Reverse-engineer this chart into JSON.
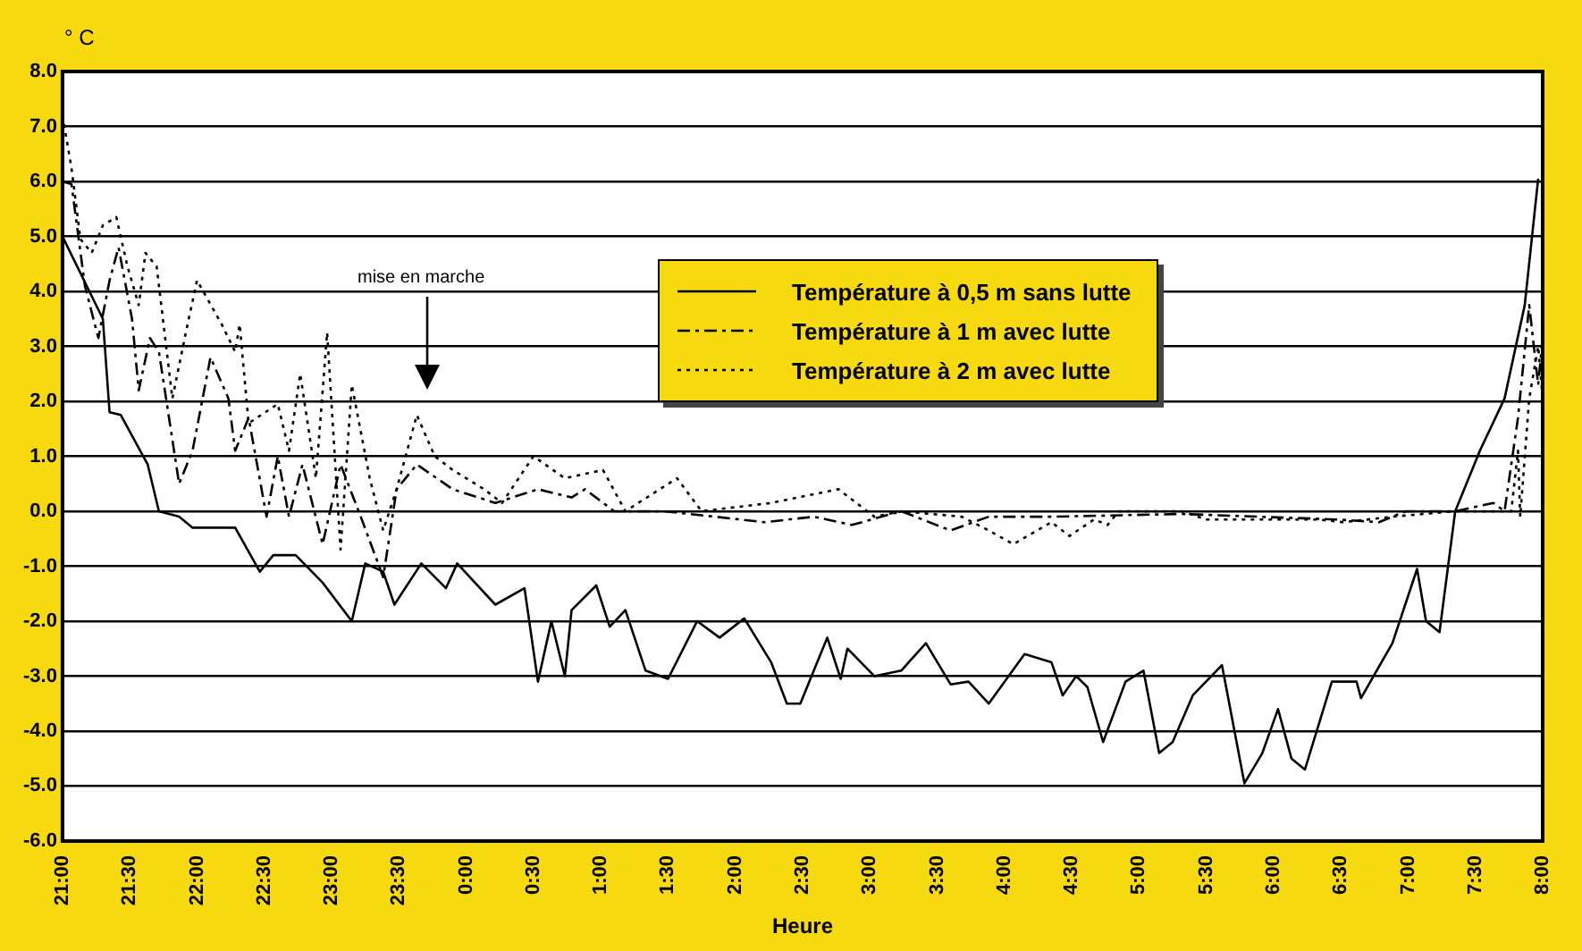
{
  "chart_data": {
    "type": "line",
    "ylabel": "° C",
    "xlabel": "Heure",
    "xlim": [
      "--01-01T21:00",
      "--01-02T08:00"
    ],
    "xticks": [
      {
        "value": "--01-01T21:00",
        "label": "21:00"
      },
      {
        "value": "--01-01T21:30",
        "label": "21:30"
      },
      {
        "value": "--01-01T22:00",
        "label": "22:00"
      },
      {
        "value": "--01-01T22:30",
        "label": "22:30"
      },
      {
        "value": "--01-01T23:00",
        "label": "23:00"
      },
      {
        "value": "--01-01T23:30",
        "label": "23:30"
      },
      {
        "value": "--01-02T00:00",
        "label": "0:00"
      },
      {
        "value": "--01-02T00:30",
        "label": "0:30"
      },
      {
        "value": "--01-02T01:00",
        "label": "1:00"
      },
      {
        "value": "--01-02T01:30",
        "label": "1:30"
      },
      {
        "value": "--01-02T02:00",
        "label": "2:00"
      },
      {
        "value": "--01-02T02:30",
        "label": "2:30"
      },
      {
        "value": "--01-02T03:00",
        "label": "3:00"
      },
      {
        "value": "--01-02T03:30",
        "label": "3:30"
      },
      {
        "value": "--01-02T04:00",
        "label": "4:00"
      },
      {
        "value": "--01-02T04:30",
        "label": "4:30"
      },
      {
        "value": "--01-02T05:00",
        "label": "5:00"
      },
      {
        "value": "--01-02T05:30",
        "label": "5:30"
      },
      {
        "value": "--01-02T06:00",
        "label": "6:00"
      },
      {
        "value": "--01-02T06:30",
        "label": "6:30"
      },
      {
        "value": "--01-02T07:00",
        "label": "7:00"
      },
      {
        "value": "--01-02T07:30",
        "label": "7:30"
      },
      {
        "value": "--01-02T08:00",
        "label": "8:00"
      }
    ],
    "ylim": [
      -6,
      8
    ],
    "yticks": [
      {
        "value": -6,
        "label": "-6.0"
      },
      {
        "value": -5,
        "label": "-5.0"
      },
      {
        "value": -4,
        "label": "-4.0"
      },
      {
        "value": -3,
        "label": "-3.0"
      },
      {
        "value": -2,
        "label": "-2.0"
      },
      {
        "value": -1,
        "label": "-1.0"
      },
      {
        "value": 0,
        "label": "0.0"
      },
      {
        "value": 1,
        "label": "1.0"
      },
      {
        "value": 2,
        "label": "2.0"
      },
      {
        "value": 3,
        "label": "3.0"
      },
      {
        "value": 4,
        "label": "4.0"
      },
      {
        "value": 5,
        "label": "5.0"
      },
      {
        "value": 6,
        "label": "6.0"
      },
      {
        "value": 7,
        "label": "7.0"
      },
      {
        "value": 8,
        "label": "8.0"
      }
    ],
    "grid": "y",
    "legend": "top",
    "marker": "none",
    "annotations": [
      "mise en marche"
    ],
    "series": [
      {
        "name": "Température à 0,5 m sans lutte",
        "color": "#000000",
        "line_style": "solid",
        "x": [
          "--01-01T21:00",
          "--01-01T21:18",
          "--01-01T21:21",
          "--01-01T21:26",
          "--01-01T21:38",
          "--01-01T21:43",
          "--01-01T21:52",
          "--01-01T21:58",
          "--01-01T22:17",
          "--01-01T22:28",
          "--01-01T22:34",
          "--01-01T22:44",
          "--01-01T22:56",
          "--01-01T23:09",
          "--01-01T23:15",
          "--01-01T23:23",
          "--01-01T23:28",
          "--01-01T23:40",
          "--01-01T23:51",
          "--01-01T23:56",
          "--01-02T00:13",
          "--01-02T00:26",
          "--01-02T00:32",
          "--01-02T00:38",
          "--01-02T00:44",
          "--01-02T00:47",
          "--01-02T00:58",
          "--01-02T01:04",
          "--01-02T01:11",
          "--01-02T01:20",
          "--01-02T01:30",
          "--01-02T01:43",
          "--01-02T01:53",
          "--01-02T02:04",
          "--01-02T02:16",
          "--01-02T02:23",
          "--01-02T02:29",
          "--01-02T02:41",
          "--01-02T02:47",
          "--01-02T02:50",
          "--01-02T03:02",
          "--01-02T03:14",
          "--01-02T03:25",
          "--01-02T03:36",
          "--01-02T03:44",
          "--01-02T03:53",
          "--01-02T04:09",
          "--01-02T04:21",
          "--01-02T04:26",
          "--01-02T04:32",
          "--01-02T04:37",
          "--01-02T04:44",
          "--01-02T04:54",
          "--01-02T05:02",
          "--01-02T05:09",
          "--01-02T05:15",
          "--01-02T05:24",
          "--01-02T05:37",
          "--01-02T05:47",
          "--01-02T05:55",
          "--01-02T06:02",
          "--01-02T06:08",
          "--01-02T06:14",
          "--01-02T06:26",
          "--01-02T06:37",
          "--01-02T06:39",
          "--01-02T06:53",
          "--01-02T07:04",
          "--01-02T07:08",
          "--01-02T07:14",
          "--01-02T07:21",
          "--01-02T07:32",
          "--01-02T07:43",
          "--01-02T07:52",
          "--01-02T07:58"
        ],
        "values": [
          5.0,
          3.5,
          1.8,
          1.75,
          0.85,
          0,
          -0.1,
          -0.3,
          -0.3,
          -1.1,
          -0.8,
          -0.8,
          -1.3,
          -2.0,
          -0.95,
          -1.1,
          -1.7,
          -0.95,
          -1.4,
          -0.95,
          -1.7,
          -1.4,
          -3.1,
          -2.0,
          -3.0,
          -1.8,
          -1.35,
          -2.1,
          -1.8,
          -2.9,
          -3.05,
          -2.0,
          -2.3,
          -1.95,
          -2.75,
          -3.5,
          -3.5,
          -2.3,
          -3.05,
          -2.5,
          -3.0,
          -2.9,
          -2.4,
          -3.15,
          -3.1,
          -3.5,
          -2.6,
          -2.75,
          -3.35,
          -3.0,
          -3.2,
          -4.2,
          -3.1,
          -2.9,
          -4.4,
          -4.2,
          -3.35,
          -2.8,
          -4.95,
          -4.4,
          -3.6,
          -4.5,
          -4.7,
          -3.1,
          -3.1,
          -3.4,
          -2.4,
          -1.05,
          -2.0,
          -2.2,
          0,
          1.1,
          2.05,
          3.75,
          6.05
        ]
      },
      {
        "name": "Température à 1 m avec lutte",
        "color": "#000000",
        "line_style": "dashed",
        "x": [
          "--01-01T21:00",
          "--01-01T21:04",
          "--01-01T21:10",
          "--01-01T21:16",
          "--01-01T21:21",
          "--01-01T21:25",
          "--01-01T21:31",
          "--01-01T21:34",
          "--01-01T21:39",
          "--01-01T21:43",
          "--01-01T21:52",
          "--01-01T21:58",
          "--01-01T22:06",
          "--01-01T22:14",
          "--01-01T22:17",
          "--01-01T22:23",
          "--01-01T22:31",
          "--01-01T22:36",
          "--01-01T22:41",
          "--01-01T22:47",
          "--01-01T22:56",
          "--01-01T23:04",
          "--01-01T23:13",
          "--01-01T23:23",
          "--01-01T23:29",
          "--01-01T23:38",
          "--01-01T23:54",
          "--01-02T00:13",
          "--01-02T00:32",
          "--01-02T00:47",
          "--01-02T00:53",
          "--01-02T01:06",
          "--01-02T01:28",
          "--01-02T01:51",
          "--01-02T02:13",
          "--01-02T02:35",
          "--01-02T02:52",
          "--01-02T03:14",
          "--01-02T03:36",
          "--01-02T03:53",
          "--01-02T04:21",
          "--01-02T05:19",
          "--01-02T06:28",
          "--01-02T06:47",
          "--01-02T06:59",
          "--01-02T07:21",
          "--01-02T07:38",
          "--01-02T07:43",
          "--01-02T07:49",
          "--01-02T07:54",
          "--01-02T07:58",
          "--01-02T08:00"
        ],
        "values": [
          6.0,
          5.95,
          4.1,
          3.15,
          4.2,
          4.8,
          3.5,
          2.2,
          3.15,
          2.9,
          0.5,
          1.1,
          2.8,
          2.05,
          1.1,
          1.7,
          -0.1,
          1.0,
          -0.1,
          0.85,
          -0.6,
          0.85,
          -0.1,
          -1.2,
          0.4,
          0.85,
          0.4,
          0.15,
          0.4,
          0.25,
          0.4,
          0,
          0,
          -0.1,
          -0.2,
          -0.1,
          -0.25,
          0,
          -0.35,
          -0.1,
          -0.1,
          -0.05,
          -0.15,
          -0.2,
          0,
          0,
          0.15,
          0,
          1.7,
          3.75,
          2.3,
          3.15
        ]
      },
      {
        "name": "Température à 2 m avec lutte",
        "color": "#000000",
        "line_style": "dotted",
        "x": [
          "--01-01T21:00",
          "--01-01T21:04",
          "--01-01T21:08",
          "--01-01T21:13",
          "--01-01T21:18",
          "--01-01T21:24",
          "--01-01T21:29",
          "--01-01T21:34",
          "--01-01T21:37",
          "--01-01T21:42",
          "--01-01T21:49",
          "--01-01T21:55",
          "--01-01T22:00",
          "--01-01T22:11",
          "--01-01T22:17",
          "--01-01T22:19",
          "--01-01T22:23",
          "--01-01T22:36",
          "--01-01T22:41",
          "--01-01T22:46",
          "--01-01T22:53",
          "--01-01T22:58",
          "--01-01T23:04",
          "--01-01T23:09",
          "--01-01T23:17",
          "--01-01T23:23",
          "--01-01T23:29",
          "--01-01T23:38",
          "--01-01T23:46",
          "--01-01T23:54",
          "--01-02T00:08",
          "--01-02T00:16",
          "--01-02T00:30",
          "--01-02T00:44",
          "--01-02T01:01",
          "--01-02T01:11",
          "--01-02T01:34",
          "--01-02T01:45",
          "--01-02T02:16",
          "--01-02T02:46",
          "--01-02T03:02",
          "--01-02T03:14",
          "--01-02T03:41",
          "--01-02T03:53",
          "--01-02T04:04",
          "--01-02T04:21",
          "--01-02T04:29",
          "--01-02T04:40",
          "--01-02T04:46",
          "--01-02T04:51",
          "--01-02T05:19",
          "--01-02T05:30",
          "--01-02T06:20",
          "--01-02T06:31",
          "--01-02T06:53",
          "--01-02T07:21",
          "--01-02T07:38",
          "--01-02T07:46",
          "--01-02T07:49",
          "--01-02T07:50",
          "--01-02T07:54",
          "--01-02T07:58",
          "--01-02T08:00"
        ],
        "values": [
          7.2,
          6.25,
          4.95,
          4.7,
          5.2,
          5.35,
          4.45,
          3.75,
          4.7,
          4.45,
          2.05,
          3.25,
          4.2,
          3.4,
          2.9,
          3.4,
          1.6,
          1.95,
          1.1,
          2.5,
          0.6,
          3.25,
          -0.7,
          2.3,
          0.6,
          -0.35,
          0.4,
          1.75,
          1.0,
          0.75,
          0.4,
          0.15,
          1.0,
          0.6,
          0.75,
          0,
          0.6,
          0,
          0.15,
          0.4,
          -0.1,
          0,
          -0.1,
          -0.35,
          -0.6,
          -0.2,
          -0.45,
          -0.15,
          -0.25,
          0,
          0,
          -0.15,
          -0.15,
          -0.2,
          -0.1,
          0,
          0,
          0,
          1.1,
          -0.1,
          2.05,
          3.0,
          2.05
        ]
      }
    ]
  }
}
